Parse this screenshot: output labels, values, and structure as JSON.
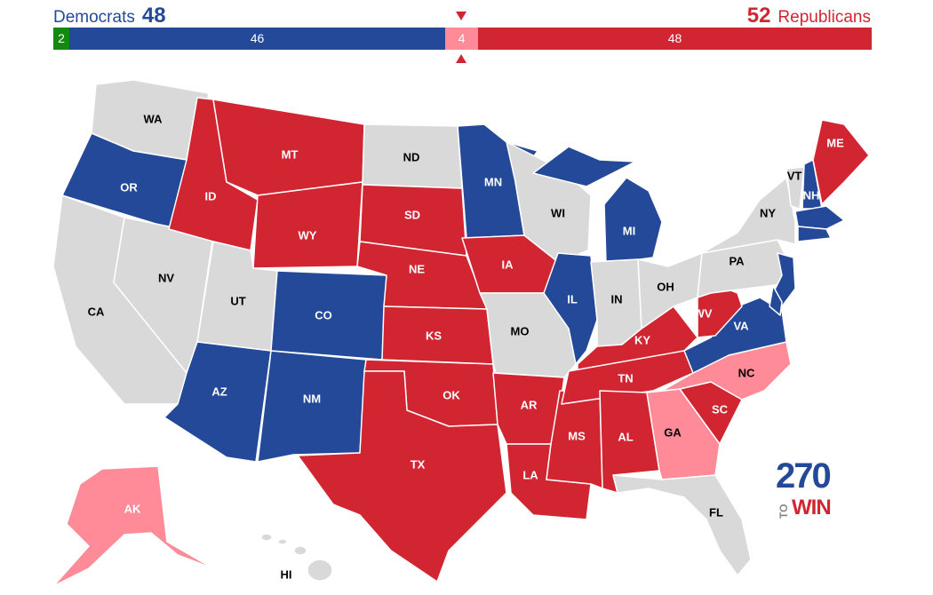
{
  "header": {
    "dem_label": "Democrats",
    "dem_total": "48",
    "rep_total": "52",
    "rep_label": "Republicans"
  },
  "bar": {
    "independent": "2",
    "democrat": "46",
    "tossup": "4",
    "republican": "48"
  },
  "colors": {
    "democrat": "#244999",
    "republican": "#d22532",
    "tossup": "#ff8b98",
    "independent": "#13890f",
    "no_race": "#d9d9d9"
  },
  "states": {
    "WA": "WA",
    "OR": "OR",
    "CA": "CA",
    "NV": "NV",
    "ID": "ID",
    "MT": "MT",
    "WY": "WY",
    "UT": "UT",
    "AZ": "AZ",
    "CO": "CO",
    "NM": "NM",
    "ND": "ND",
    "SD": "SD",
    "NE": "NE",
    "KS": "KS",
    "OK": "OK",
    "TX": "TX",
    "MN": "MN",
    "IA": "IA",
    "MO": "MO",
    "AR": "AR",
    "LA": "LA",
    "WI": "WI",
    "IL": "IL",
    "MS": "MS",
    "MI": "MI",
    "IN": "IN",
    "KY": "KY",
    "TN": "TN",
    "AL": "AL",
    "OH": "OH",
    "GA": "GA",
    "FL": "FL",
    "SC": "SC",
    "NC": "NC",
    "VA": "VA",
    "WV": "WV",
    "PA": "PA",
    "NY": "NY",
    "VT": "VT",
    "NH": "NH",
    "ME": "ME",
    "AK": "AK",
    "HI": "HI"
  },
  "logo": {
    "number": "270",
    "to": "TO",
    "win": "WIN"
  }
}
